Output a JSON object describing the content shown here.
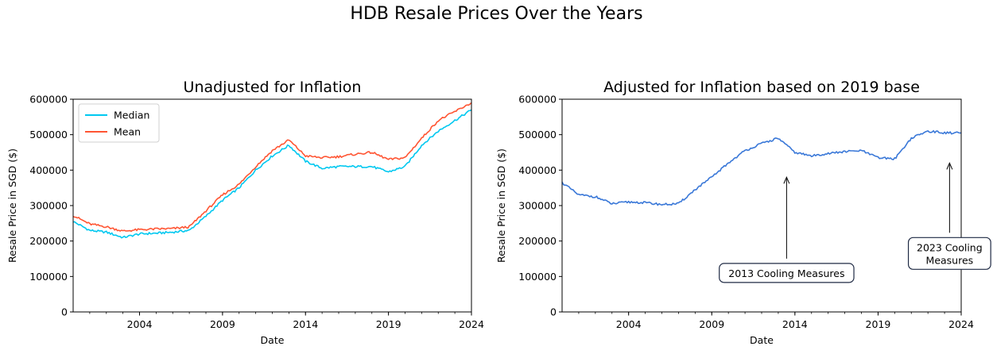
{
  "figure": {
    "title": "HDB Resale Prices Over the Years"
  },
  "chart_data": [
    {
      "type": "line",
      "title": "Unadjusted for Inflation",
      "xlabel": "Date",
      "ylabel": "Resale Price in SGD ($)",
      "xlim": [
        2000,
        2024
      ],
      "ylim": [
        0,
        600000
      ],
      "x_ticks": [
        "2004",
        "2009",
        "2014",
        "2019",
        "2024"
      ],
      "y_ticks": [
        "0",
        "100000",
        "200000",
        "300000",
        "400000",
        "500000",
        "600000"
      ],
      "legend": "upper-left",
      "grid": false,
      "x": [
        2000,
        2001,
        2002,
        2003,
        2004,
        2005,
        2006,
        2007,
        2008,
        2009,
        2010,
        2011,
        2012,
        2013,
        2014,
        2015,
        2016,
        2017,
        2018,
        2019,
        2020,
        2021,
        2022,
        2023,
        2024
      ],
      "series": [
        {
          "name": "Median",
          "color": "#00c8f0",
          "values": [
            255000,
            230000,
            225000,
            210000,
            220000,
            222000,
            225000,
            230000,
            270000,
            315000,
            350000,
            400000,
            440000,
            470000,
            425000,
            405000,
            410000,
            410000,
            410000,
            395000,
            410000,
            470000,
            510000,
            540000,
            570000
          ]
        },
        {
          "name": "Mean",
          "color": "#ff5533",
          "values": [
            272000,
            248000,
            240000,
            228000,
            232000,
            234000,
            235000,
            240000,
            285000,
            330000,
            360000,
            410000,
            455000,
            485000,
            440000,
            435000,
            438000,
            445000,
            450000,
            430000,
            435000,
            490000,
            540000,
            565000,
            590000
          ]
        }
      ]
    },
    {
      "type": "line",
      "title": "Adjusted for Inflation based on 2019 base",
      "xlabel": "Date",
      "ylabel": "Resale Price in SGD ($)",
      "xlim": [
        2000,
        2024
      ],
      "ylim": [
        0,
        600000
      ],
      "x_ticks": [
        "2004",
        "2009",
        "2014",
        "2019",
        "2024"
      ],
      "y_ticks": [
        "0",
        "100000",
        "200000",
        "300000",
        "400000",
        "500000",
        "600000"
      ],
      "grid": false,
      "x": [
        2000,
        2001,
        2002,
        2003,
        2004,
        2005,
        2006,
        2007,
        2008,
        2009,
        2010,
        2011,
        2012,
        2013,
        2014,
        2015,
        2016,
        2017,
        2018,
        2019,
        2020,
        2021,
        2022,
        2023,
        2024
      ],
      "series": [
        {
          "color": "#3a78d8",
          "values": [
            365000,
            330000,
            325000,
            305000,
            310000,
            308000,
            303000,
            305000,
            345000,
            380000,
            420000,
            455000,
            475000,
            490000,
            450000,
            440000,
            447000,
            452000,
            455000,
            435000,
            432000,
            490000,
            510000,
            505000,
            505000
          ]
        }
      ],
      "annotations": [
        {
          "text": "2013 Cooling Measures",
          "x": 2013.5,
          "y": 380000,
          "text_x": 2013.5,
          "text_y": 110000
        },
        {
          "text": "2023 Cooling\nMeasures",
          "x": 2023.3,
          "y": 420000,
          "text_x": 2023.3,
          "text_y": 165000
        }
      ]
    }
  ]
}
